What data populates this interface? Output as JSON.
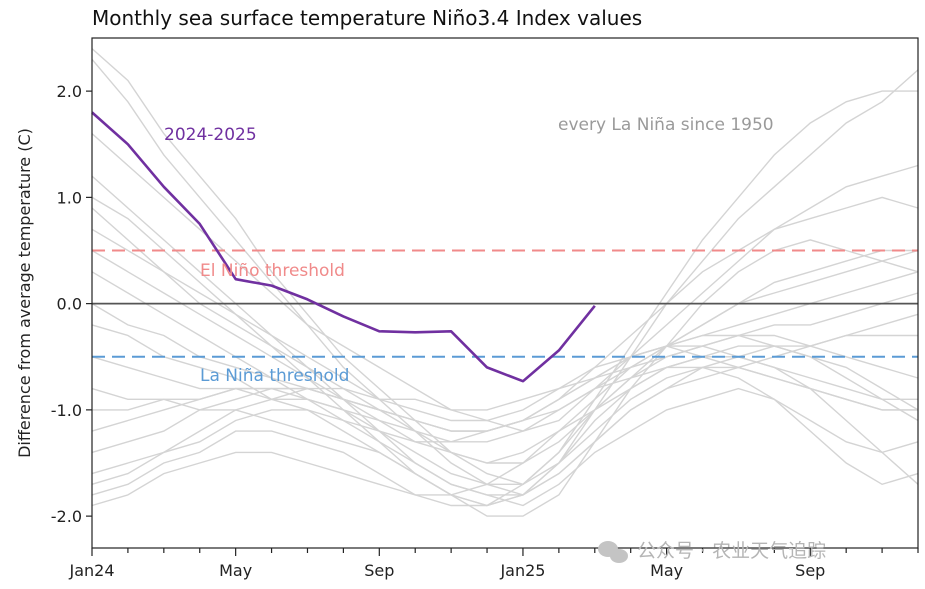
{
  "chart_data": {
    "type": "line",
    "title": "Monthly sea surface temperature Niño3.4 Index values",
    "ylabel": "Difference from average temperature (C)",
    "xlabel": "",
    "x_months": 24,
    "x_ticks": [
      {
        "month": 0,
        "label": "Jan24"
      },
      {
        "month": 4,
        "label": "May"
      },
      {
        "month": 8,
        "label": "Sep"
      },
      {
        "month": 12,
        "label": "Jan25"
      },
      {
        "month": 16,
        "label": "May"
      },
      {
        "month": 20,
        "label": "Sep"
      }
    ],
    "ylim": [
      -2.3,
      2.5
    ],
    "y_ticks": [
      {
        "value": 2.0,
        "label": "2.0"
      },
      {
        "value": 1.0,
        "label": "1.0"
      },
      {
        "value": 0.0,
        "label": "0.0"
      },
      {
        "value": -1.0,
        "label": "-1.0"
      },
      {
        "value": -2.0,
        "label": "-2.0"
      }
    ],
    "zero_line": 0.0,
    "thresholds": [
      {
        "name": "El Niño threshold",
        "value": 0.5,
        "color": "#f08a8a"
      },
      {
        "name": "La Niña threshold",
        "value": -0.5,
        "color": "#5b9bd5"
      }
    ],
    "highlight_series": {
      "name": "2024-2025",
      "color": "#7030a0",
      "x": [
        0,
        1,
        2,
        3,
        4,
        5,
        6,
        7,
        8,
        9,
        10,
        11,
        12,
        13,
        14
      ],
      "values": [
        1.8,
        1.5,
        1.1,
        0.75,
        0.23,
        0.17,
        0.04,
        -0.12,
        -0.26,
        -0.27,
        -0.26,
        -0.6,
        -0.73,
        -0.44,
        -0.02
      ]
    },
    "background_label": "every La Niña since 1950",
    "background_color": "#d4d4d4",
    "background_series": [
      {
        "name": "la-nina-1",
        "values": [
          2.3,
          1.9,
          1.4,
          1.0,
          0.6,
          0.2,
          -0.2,
          -0.6,
          -0.9,
          -1.2,
          -1.5,
          -1.7,
          -1.8,
          -1.5,
          -1.0,
          -0.5,
          0.0,
          0.4,
          0.8,
          1.1,
          1.4,
          1.7,
          1.9,
          2.2
        ]
      },
      {
        "name": "la-nina-2",
        "values": [
          2.4,
          2.1,
          1.6,
          1.2,
          0.8,
          0.3,
          -0.1,
          -0.5,
          -0.8,
          -1.1,
          -1.4,
          -1.6,
          -1.7,
          -1.4,
          -0.9,
          -0.4,
          0.1,
          0.6,
          1.0,
          1.4,
          1.7,
          1.9,
          2.0,
          2.0
        ]
      },
      {
        "name": "la-nina-3",
        "values": [
          1.6,
          1.3,
          1.0,
          0.7,
          0.4,
          0.1,
          -0.2,
          -0.4,
          -0.6,
          -0.8,
          -1.0,
          -1.1,
          -1.2,
          -1.1,
          -0.8,
          -0.5,
          -0.2,
          0.1,
          0.4,
          0.7,
          0.9,
          1.1,
          1.2,
          1.3
        ]
      },
      {
        "name": "la-nina-4",
        "values": [
          1.2,
          0.9,
          0.6,
          0.3,
          0.0,
          -0.3,
          -0.6,
          -0.9,
          -1.2,
          -1.5,
          -1.7,
          -1.8,
          -1.9,
          -1.7,
          -1.4,
          -1.2,
          -1.0,
          -0.9,
          -0.8,
          -0.9,
          -1.2,
          -1.5,
          -1.7,
          -1.6
        ]
      },
      {
        "name": "la-nina-5",
        "values": [
          1.0,
          0.8,
          0.5,
          0.2,
          -0.1,
          -0.4,
          -0.7,
          -1.0,
          -1.3,
          -1.6,
          -1.8,
          -2.0,
          -2.0,
          -1.8,
          -1.3,
          -0.8,
          -0.4,
          0.0,
          0.3,
          0.5,
          0.6,
          0.5,
          0.4,
          0.3
        ]
      },
      {
        "name": "la-nina-6",
        "values": [
          0.9,
          0.6,
          0.3,
          0.0,
          -0.2,
          -0.4,
          -0.6,
          -0.8,
          -1.0,
          -1.1,
          -1.2,
          -1.2,
          -1.1,
          -0.9,
          -0.6,
          -0.3,
          0.0,
          0.3,
          0.5,
          0.7,
          0.8,
          0.9,
          1.0,
          0.9
        ]
      },
      {
        "name": "la-nina-7",
        "values": [
          0.7,
          0.5,
          0.3,
          0.1,
          -0.1,
          -0.3,
          -0.5,
          -0.7,
          -0.9,
          -1.0,
          -1.1,
          -1.1,
          -1.0,
          -0.8,
          -0.6,
          -0.5,
          -0.4,
          -0.5,
          -0.6,
          -0.7,
          -0.8,
          -0.9,
          -1.0,
          -1.0
        ]
      },
      {
        "name": "la-nina-8",
        "values": [
          0.5,
          0.3,
          0.1,
          -0.1,
          -0.3,
          -0.5,
          -0.7,
          -0.9,
          -1.1,
          -1.3,
          -1.4,
          -1.5,
          -1.5,
          -1.3,
          -1.0,
          -0.7,
          -0.4,
          -0.2,
          0.0,
          0.2,
          0.3,
          0.4,
          0.5,
          0.5
        ]
      },
      {
        "name": "la-nina-9",
        "values": [
          0.3,
          0.1,
          -0.1,
          -0.3,
          -0.5,
          -0.7,
          -0.9,
          -1.1,
          -1.3,
          -1.5,
          -1.7,
          -1.8,
          -1.8,
          -1.6,
          -1.3,
          -1.0,
          -0.8,
          -0.7,
          -0.6,
          -0.5,
          -0.4,
          -0.3,
          -0.2,
          -0.1
        ]
      },
      {
        "name": "la-nina-10",
        "values": [
          0.0,
          -0.2,
          -0.3,
          -0.5,
          -0.6,
          -0.7,
          -0.8,
          -0.8,
          -0.9,
          -0.9,
          -1.0,
          -1.0,
          -0.9,
          -0.8,
          -0.7,
          -0.6,
          -0.5,
          -0.4,
          -0.3,
          -0.2,
          -0.2,
          -0.1,
          0.0,
          0.1
        ]
      },
      {
        "name": "la-nina-11",
        "values": [
          -0.2,
          -0.3,
          -0.5,
          -0.6,
          -0.7,
          -0.9,
          -1.0,
          -1.2,
          -1.4,
          -1.6,
          -1.8,
          -1.9,
          -1.8,
          -1.5,
          -1.1,
          -0.8,
          -0.6,
          -0.5,
          -0.5,
          -0.6,
          -0.8,
          -1.1,
          -1.4,
          -1.7
        ]
      },
      {
        "name": "la-nina-12",
        "values": [
          -0.5,
          -0.6,
          -0.7,
          -0.8,
          -0.8,
          -0.9,
          -0.9,
          -1.0,
          -1.1,
          -1.2,
          -1.3,
          -1.3,
          -1.2,
          -1.0,
          -0.8,
          -0.6,
          -0.4,
          -0.3,
          -0.2,
          -0.1,
          0.0,
          0.1,
          0.2,
          0.3
        ]
      },
      {
        "name": "la-nina-13",
        "values": [
          -0.8,
          -0.9,
          -0.9,
          -1.0,
          -1.0,
          -1.1,
          -1.2,
          -1.3,
          -1.4,
          -1.6,
          -1.8,
          -1.9,
          -1.8,
          -1.6,
          -1.3,
          -1.0,
          -0.8,
          -0.6,
          -0.5,
          -0.4,
          -0.4,
          -0.3,
          -0.3,
          -0.3
        ]
      },
      {
        "name": "la-nina-14",
        "values": [
          -1.0,
          -1.0,
          -0.9,
          -0.9,
          -0.8,
          -0.8,
          -0.8,
          -0.9,
          -1.0,
          -1.1,
          -1.2,
          -1.2,
          -1.1,
          -0.9,
          -0.7,
          -0.5,
          -0.4,
          -0.4,
          -0.5,
          -0.6,
          -0.7,
          -0.8,
          -0.9,
          -0.9
        ]
      },
      {
        "name": "la-nina-15",
        "values": [
          -1.2,
          -1.1,
          -1.0,
          -0.9,
          -0.8,
          -0.8,
          -0.9,
          -1.0,
          -1.2,
          -1.4,
          -1.6,
          -1.7,
          -1.7,
          -1.5,
          -1.2,
          -0.9,
          -0.7,
          -0.6,
          -0.6,
          -0.7,
          -0.8,
          -0.9,
          -1.0,
          -1.0
        ]
      },
      {
        "name": "la-nina-16",
        "values": [
          -1.4,
          -1.3,
          -1.2,
          -1.0,
          -0.9,
          -0.8,
          -0.8,
          -0.9,
          -1.0,
          -1.1,
          -1.2,
          -1.2,
          -1.1,
          -1.0,
          -0.8,
          -0.7,
          -0.6,
          -0.6,
          -0.7,
          -0.9,
          -1.1,
          -1.3,
          -1.4,
          -1.3
        ]
      },
      {
        "name": "la-nina-17",
        "values": [
          -1.6,
          -1.5,
          -1.4,
          -1.2,
          -1.0,
          -0.9,
          -0.8,
          -0.9,
          -1.0,
          -1.2,
          -1.4,
          -1.5,
          -1.4,
          -1.2,
          -1.0,
          -0.8,
          -0.6,
          -0.5,
          -0.4,
          -0.4,
          -0.5,
          -0.6,
          -0.8,
          -1.0
        ]
      },
      {
        "name": "la-nina-18",
        "values": [
          -1.7,
          -1.6,
          -1.4,
          -1.3,
          -1.1,
          -1.0,
          -1.0,
          -1.1,
          -1.2,
          -1.3,
          -1.3,
          -1.2,
          -1.1,
          -0.9,
          -0.7,
          -0.5,
          -0.4,
          -0.3,
          -0.3,
          -0.4,
          -0.5,
          -0.7,
          -0.9,
          -1.1
        ]
      },
      {
        "name": "la-nina-19",
        "values": [
          -1.8,
          -1.7,
          -1.5,
          -1.4,
          -1.2,
          -1.2,
          -1.3,
          -1.4,
          -1.6,
          -1.8,
          -1.9,
          -1.9,
          -1.7,
          -1.4,
          -1.0,
          -0.7,
          -0.5,
          -0.4,
          -0.3,
          -0.3,
          -0.4,
          -0.5,
          -0.6,
          -0.7
        ]
      },
      {
        "name": "la-nina-20",
        "values": [
          -1.9,
          -1.8,
          -1.6,
          -1.5,
          -1.4,
          -1.4,
          -1.5,
          -1.6,
          -1.7,
          -1.8,
          -1.8,
          -1.7,
          -1.5,
          -1.2,
          -0.9,
          -0.6,
          -0.4,
          -0.2,
          0.0,
          0.1,
          0.2,
          0.3,
          0.4,
          0.5
        ]
      }
    ]
  },
  "labels": {
    "highlight_label": "2024-2025",
    "background_label": "every La Niña since 1950",
    "el_nino_label": "El Niño threshold",
    "la_nina_label": "La Niña threshold"
  },
  "watermark": {
    "text": "公众号 · 农业天气追踪",
    "icon": "wechat-icon"
  }
}
